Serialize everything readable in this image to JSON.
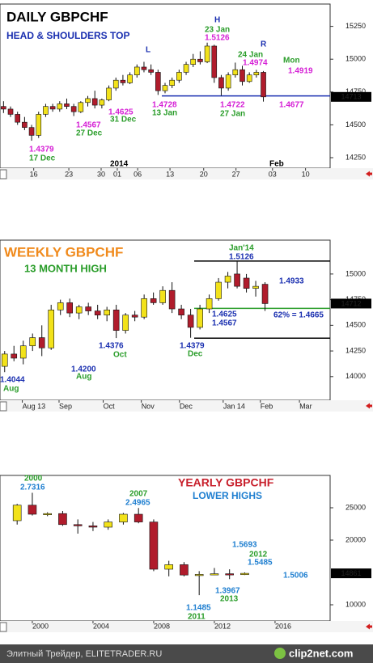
{
  "chart_data": [
    {
      "type": "candlestick",
      "title": "DAILY GBPCHF",
      "title_color": "#000000",
      "subtitle": "HEAD & SHOULDERS TOP",
      "subtitle_color": "#1a2fb0",
      "up_color": "#f2e21a",
      "down_color": "#b01c2c",
      "open": [
        14640,
        14620,
        14580,
        14520,
        14480,
        14420,
        14580,
        14640,
        14620,
        14660,
        14640,
        14600,
        14670,
        14700,
        14650,
        14690,
        14780,
        14840,
        14820,
        14880,
        14940,
        14920,
        14900,
        14760,
        14800,
        14840,
        14900,
        14960,
        15000,
        14980,
        15100,
        14860,
        14780,
        14880,
        14920,
        14830,
        14880,
        14900
      ],
      "high": [
        14680,
        14640,
        14600,
        14560,
        14500,
        14600,
        14660,
        14660,
        14680,
        14700,
        14660,
        14680,
        14720,
        14760,
        14700,
        14800,
        14860,
        14880,
        14900,
        14960,
        14980,
        14960,
        14920,
        14820,
        14860,
        14920,
        14980,
        15040,
        15060,
        15126,
        15110,
        14880,
        14900,
        14974,
        14950,
        14900,
        14919,
        14910
      ],
      "low": [
        14590,
        14560,
        14500,
        14460,
        14379,
        14400,
        14560,
        14600,
        14600,
        14620,
        14567,
        14590,
        14640,
        14625,
        14625,
        14680,
        14760,
        14800,
        14810,
        14860,
        14900,
        14880,
        14728,
        14740,
        14780,
        14820,
        14880,
        14940,
        14960,
        14970,
        14820,
        14722,
        14760,
        14860,
        14800,
        14820,
        14860,
        14677
      ],
      "close": [
        14620,
        14580,
        14520,
        14480,
        14420,
        14580,
        14640,
        14620,
        14660,
        14640,
        14600,
        14670,
        14700,
        14650,
        14690,
        14780,
        14840,
        14820,
        14880,
        14940,
        14920,
        14900,
        14760,
        14800,
        14840,
        14900,
        14960,
        15000,
        14980,
        15100,
        14860,
        14780,
        14880,
        14920,
        14830,
        14880,
        14900,
        14713
      ],
      "xlim": [
        -0.5,
        46.5
      ],
      "xticks": [
        {
          "value": 4.3,
          "label": "16"
        },
        {
          "value": 9.3,
          "label": "23"
        },
        {
          "value": 13.9,
          "label": "30"
        },
        {
          "value": 16.2,
          "label": "01"
        },
        {
          "value": 19.1,
          "label": "06"
        },
        {
          "value": 23.7,
          "label": "13"
        },
        {
          "value": 28.5,
          "label": "20"
        },
        {
          "value": 33.1,
          "label": "27"
        },
        {
          "value": 38.3,
          "label": "03"
        },
        {
          "value": 43.0,
          "label": "10"
        }
      ],
      "ylim": [
        14170,
        15420
      ],
      "yticks": [
        14250,
        14500,
        14750,
        15000,
        15250
      ],
      "price_box": 14713,
      "levels": [
        {
          "value": 14720,
          "color": "#1a2fb0"
        }
      ],
      "annotations": [
        {
          "text": "L",
          "color": "#1a2fb0"
        },
        {
          "text": "H",
          "color": "#1a2fb0"
        },
        {
          "text": "R",
          "color": "#1a2fb0"
        },
        {
          "text": "23 Jan",
          "color": "#2a9d2a"
        },
        {
          "text": "1.5126",
          "color": "#d51fd5"
        },
        {
          "text": "24 Jan",
          "color": "#2a9d2a"
        },
        {
          "text": "1.4974",
          "color": "#d51fd5"
        },
        {
          "text": "Mon",
          "color": "#2a9d2a"
        },
        {
          "text": "1.4919",
          "color": "#d51fd5"
        },
        {
          "text": "1.4728",
          "color": "#d51fd5"
        },
        {
          "text": "13 Jan",
          "color": "#2a9d2a"
        },
        {
          "text": "1.4722",
          "color": "#d51fd5"
        },
        {
          "text": "27 Jan",
          "color": "#2a9d2a"
        },
        {
          "text": "1.4677",
          "color": "#d51fd5"
        },
        {
          "text": "1.4625",
          "color": "#d51fd5"
        },
        {
          "text": "31 Dec",
          "color": "#2a9d2a"
        },
        {
          "text": "1.4567",
          "color": "#d51fd5"
        },
        {
          "text": "27 Dec",
          "color": "#2a9d2a"
        },
        {
          "text": "1.4379",
          "color": "#d51fd5"
        },
        {
          "text": "17 Dec",
          "color": "#2a9d2a"
        },
        {
          "text": "2014",
          "color": "#000000"
        },
        {
          "text": "Feb",
          "color": "#000000"
        }
      ]
    },
    {
      "type": "candlestick",
      "title": "WEEKLY GBPCHF",
      "title_color": "#f08a1c",
      "subtitle": "13 MONTH HIGH",
      "subtitle_color": "#2a9d2a",
      "up_color": "#f2e21a",
      "down_color": "#b01c2c",
      "open": [
        14100,
        14220,
        14180,
        14300,
        14380,
        14280,
        14650,
        14720,
        14620,
        14680,
        14640,
        14600,
        14650,
        14450,
        14600,
        14580,
        14760,
        14720,
        14840,
        14660,
        14600,
        14480,
        14660,
        14760,
        14920,
        15000,
        14960,
        14860,
        14900
      ],
      "high": [
        14250,
        14300,
        14350,
        14420,
        14500,
        14700,
        14750,
        14760,
        14700,
        14720,
        14700,
        14680,
        14700,
        14620,
        14640,
        14800,
        14820,
        14880,
        14920,
        14700,
        14660,
        14700,
        14800,
        14960,
        15020,
        15126,
        15000,
        14933,
        14920
      ],
      "low": [
        14044,
        14150,
        14120,
        14250,
        14200,
        14260,
        14600,
        14580,
        14560,
        14600,
        14560,
        14540,
        14376,
        14420,
        14540,
        14560,
        14700,
        14700,
        14620,
        14560,
        14379,
        14460,
        14620,
        14740,
        14860,
        14860,
        14820,
        14780,
        14640
      ],
      "close": [
        14220,
        14180,
        14300,
        14380,
        14280,
        14650,
        14720,
        14620,
        14680,
        14640,
        14600,
        14650,
        14450,
        14600,
        14580,
        14760,
        14720,
        14840,
        14660,
        14600,
        14480,
        14660,
        14760,
        14920,
        14980,
        14880,
        14860,
        14880,
        14712
      ],
      "xlim": [
        -0.5,
        35
      ],
      "xticks": [
        {
          "value": 1.9,
          "label": "Aug 13"
        },
        {
          "value": 5.85,
          "label": "Sep"
        },
        {
          "value": 10.6,
          "label": "Oct"
        },
        {
          "value": 14.7,
          "label": "Nov"
        },
        {
          "value": 18.8,
          "label": "Dec"
        },
        {
          "value": 23.5,
          "label": "Jan 14"
        },
        {
          "value": 27.5,
          "label": "Feb"
        },
        {
          "value": 31.7,
          "label": "Mar"
        }
      ],
      "ylim": [
        13770,
        15330
      ],
      "yticks": [
        14000,
        14250,
        14500,
        14750,
        15000
      ],
      "price_box": 14712,
      "levels": [
        {
          "value": 15126,
          "color": "#000000"
        },
        {
          "value": 14665,
          "color": "#2a9d2a"
        },
        {
          "value": 14375,
          "color": "#000000"
        }
      ],
      "annotations": [
        {
          "text": "Jan'14",
          "color": "#2a9d2a"
        },
        {
          "text": "1.5126",
          "color": "#1a2fb0"
        },
        {
          "text": "1.4933",
          "color": "#1a2fb0"
        },
        {
          "text": "1.4625",
          "color": "#1a2fb0"
        },
        {
          "text": "1.4567",
          "color": "#1a2fb0"
        },
        {
          "text": "62% = 1.4665",
          "color": "#1a2fb0"
        },
        {
          "text": "1.4379",
          "color": "#1a2fb0"
        },
        {
          "text": "Dec",
          "color": "#2a9d2a"
        },
        {
          "text": "1.4376",
          "color": "#1a2fb0"
        },
        {
          "text": "Oct",
          "color": "#2a9d2a"
        },
        {
          "text": "1.4200",
          "color": "#1a2fb0"
        },
        {
          "text": "Aug",
          "color": "#2a9d2a"
        },
        {
          "text": "1.4044",
          "color": "#1a2fb0"
        },
        {
          "text": "Aug",
          "color": "#2a9d2a"
        }
      ]
    },
    {
      "type": "candlestick",
      "title": "YEARLY GBPCHF",
      "title_color": "#c8202c",
      "subtitle": "LOWER HIGHS",
      "subtitle_color": "#1f7fd0",
      "up_color": "#f2e21a",
      "down_color": "#b01c2c",
      "x": [
        1999,
        2000,
        2001,
        2002,
        2003,
        2004,
        2005,
        2006,
        2007,
        2008,
        2009,
        2010,
        2011,
        2012,
        2013,
        2014
      ],
      "open": [
        23000,
        25400,
        24000,
        24100,
        22400,
        22200,
        22000,
        22800,
        24000,
        22800,
        15500,
        16200,
        14600,
        14700,
        14800,
        14660
      ],
      "high": [
        25600,
        27316,
        24300,
        24500,
        23200,
        22800,
        23200,
        24200,
        24965,
        23200,
        16800,
        16600,
        15200,
        15693,
        15485,
        15006
      ],
      "low": [
        22400,
        23800,
        23700,
        22200,
        21000,
        21400,
        21600,
        22400,
        22600,
        15200,
        14400,
        14400,
        11485,
        14600,
        13967,
        14600
      ],
      "close": [
        25400,
        24000,
        24100,
        22400,
        22200,
        22000,
        22800,
        24000,
        22800,
        15500,
        16200,
        14600,
        14700,
        14800,
        14660,
        14861
      ],
      "xlim": [
        1997.87,
        2019.63
      ],
      "xticks": [
        2000,
        2004,
        2008,
        2012,
        2016
      ],
      "ylim": [
        7500,
        30000
      ],
      "yticks": [
        10000,
        20000,
        25000
      ],
      "price_box": 14861,
      "annotations": [
        {
          "text": "2000",
          "color": "#2a9d2a"
        },
        {
          "text": "2.7316",
          "color": "#1f7fd0"
        },
        {
          "text": "2007",
          "color": "#2a9d2a"
        },
        {
          "text": "2.4965",
          "color": "#1f7fd0"
        },
        {
          "text": "1.5693",
          "color": "#1f7fd0"
        },
        {
          "text": "2012",
          "color": "#2a9d2a"
        },
        {
          "text": "1.5485",
          "color": "#1f7fd0"
        },
        {
          "text": "1.5006",
          "color": "#1f7fd0"
        },
        {
          "text": "1.3967",
          "color": "#1f7fd0"
        },
        {
          "text": "2013",
          "color": "#2a9d2a"
        },
        {
          "text": "1.1485",
          "color": "#1f7fd0"
        },
        {
          "text": "2011",
          "color": "#2a9d2a"
        }
      ]
    }
  ],
  "footer": {
    "left": "Элитный Трейдер, ELITETRADER.RU",
    "right": "clip2net.com"
  }
}
